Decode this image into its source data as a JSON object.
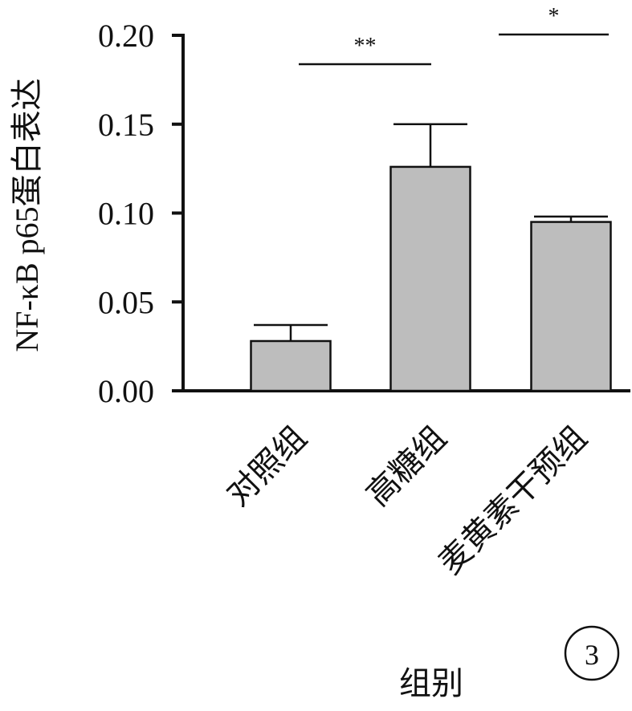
{
  "chart_data": {
    "type": "bar",
    "categories": [
      "对照组",
      "高糖组",
      "麦黄素干预组"
    ],
    "values": [
      0.028,
      0.126,
      0.095
    ],
    "errors": [
      0.009,
      0.024,
      0.003
    ],
    "ylabel": "NF-κB p65蛋白表达",
    "xlabel": "组别",
    "ylim": [
      0,
      0.2
    ],
    "yticks": [
      0.0,
      0.05,
      0.1,
      0.15,
      0.2
    ],
    "ytick_labels": [
      "0.00",
      "0.05",
      "0.10",
      "0.15",
      "0.20"
    ],
    "grid": false,
    "significance": [
      {
        "from": 0,
        "to": 1,
        "label": "**"
      },
      {
        "from": 1,
        "to": 2,
        "label": "*"
      }
    ],
    "panel_label": "3",
    "colors": {
      "bar_fill": "#bdbdbd",
      "bar_stroke": "#111111",
      "axis": "#111111"
    }
  }
}
